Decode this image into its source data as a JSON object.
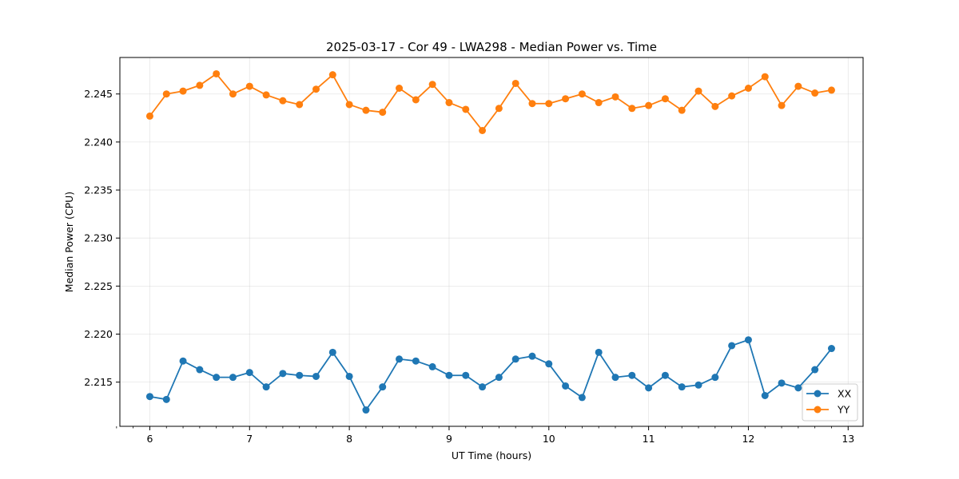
{
  "chart_data": {
    "type": "line",
    "title": "2025-03-17 - Cor 49 - LWA298 - Median Power vs. Time",
    "xlabel": "UT Time (hours)",
    "ylabel": "Median Power (CPU)",
    "xlim": [
      5.7,
      13.15
    ],
    "ylim": [
      2.2104,
      2.2488
    ],
    "x_ticks": [
      6,
      7,
      8,
      9,
      10,
      11,
      12,
      13
    ],
    "y_ticks": [
      2.215,
      2.22,
      2.225,
      2.23,
      2.235,
      2.24,
      2.245
    ],
    "y_tick_labels": [
      "2.215",
      "2.220",
      "2.225",
      "2.230",
      "2.235",
      "2.240",
      "2.245"
    ],
    "grid": true,
    "legend_position": "lower-right",
    "x": [
      6.0,
      6.1667,
      6.3333,
      6.5,
      6.6667,
      6.8333,
      7.0,
      7.1667,
      7.3333,
      7.5,
      7.6667,
      7.8333,
      8.0,
      8.1667,
      8.3333,
      8.5,
      8.6667,
      8.8333,
      9.0,
      9.1667,
      9.3333,
      9.5,
      9.6667,
      9.8333,
      10.0,
      10.1667,
      10.3333,
      10.5,
      10.6667,
      10.8333,
      11.0,
      11.1667,
      11.3333,
      11.5,
      11.6667,
      11.8333,
      12.0,
      12.1667,
      12.3333,
      12.5,
      12.6667,
      12.8333
    ],
    "series": [
      {
        "name": "XX",
        "color": "#1f77b4",
        "values": [
          2.2135,
          2.2132,
          2.2172,
          2.2163,
          2.2155,
          2.2155,
          2.216,
          2.2145,
          2.2159,
          2.2157,
          2.2156,
          2.2181,
          2.2156,
          2.2121,
          2.2145,
          2.2174,
          2.2172,
          2.2166,
          2.2157,
          2.2157,
          2.2145,
          2.2155,
          2.2174,
          2.2177,
          2.2169,
          2.2146,
          2.2134,
          2.2181,
          2.2155,
          2.2157,
          2.2144,
          2.2157,
          2.2145,
          2.2147,
          2.2155,
          2.2188,
          2.2194,
          2.2136,
          2.2149,
          2.2144,
          2.2163,
          2.2185
        ]
      },
      {
        "name": "YY",
        "color": "#ff7f0e",
        "values": [
          2.2427,
          2.245,
          2.2453,
          2.2459,
          2.2471,
          2.245,
          2.2458,
          2.2449,
          2.2443,
          2.2439,
          2.2455,
          2.247,
          2.2439,
          2.2433,
          2.2431,
          2.2456,
          2.2444,
          2.246,
          2.2441,
          2.2434,
          2.2412,
          2.2435,
          2.2461,
          2.244,
          2.244,
          2.2445,
          2.245,
          2.2441,
          2.2447,
          2.2435,
          2.2438,
          2.2445,
          2.2433,
          2.2453,
          2.2437,
          2.2448,
          2.2456,
          2.2468,
          2.2438,
          2.2458,
          2.2451,
          2.2454
        ]
      }
    ]
  }
}
